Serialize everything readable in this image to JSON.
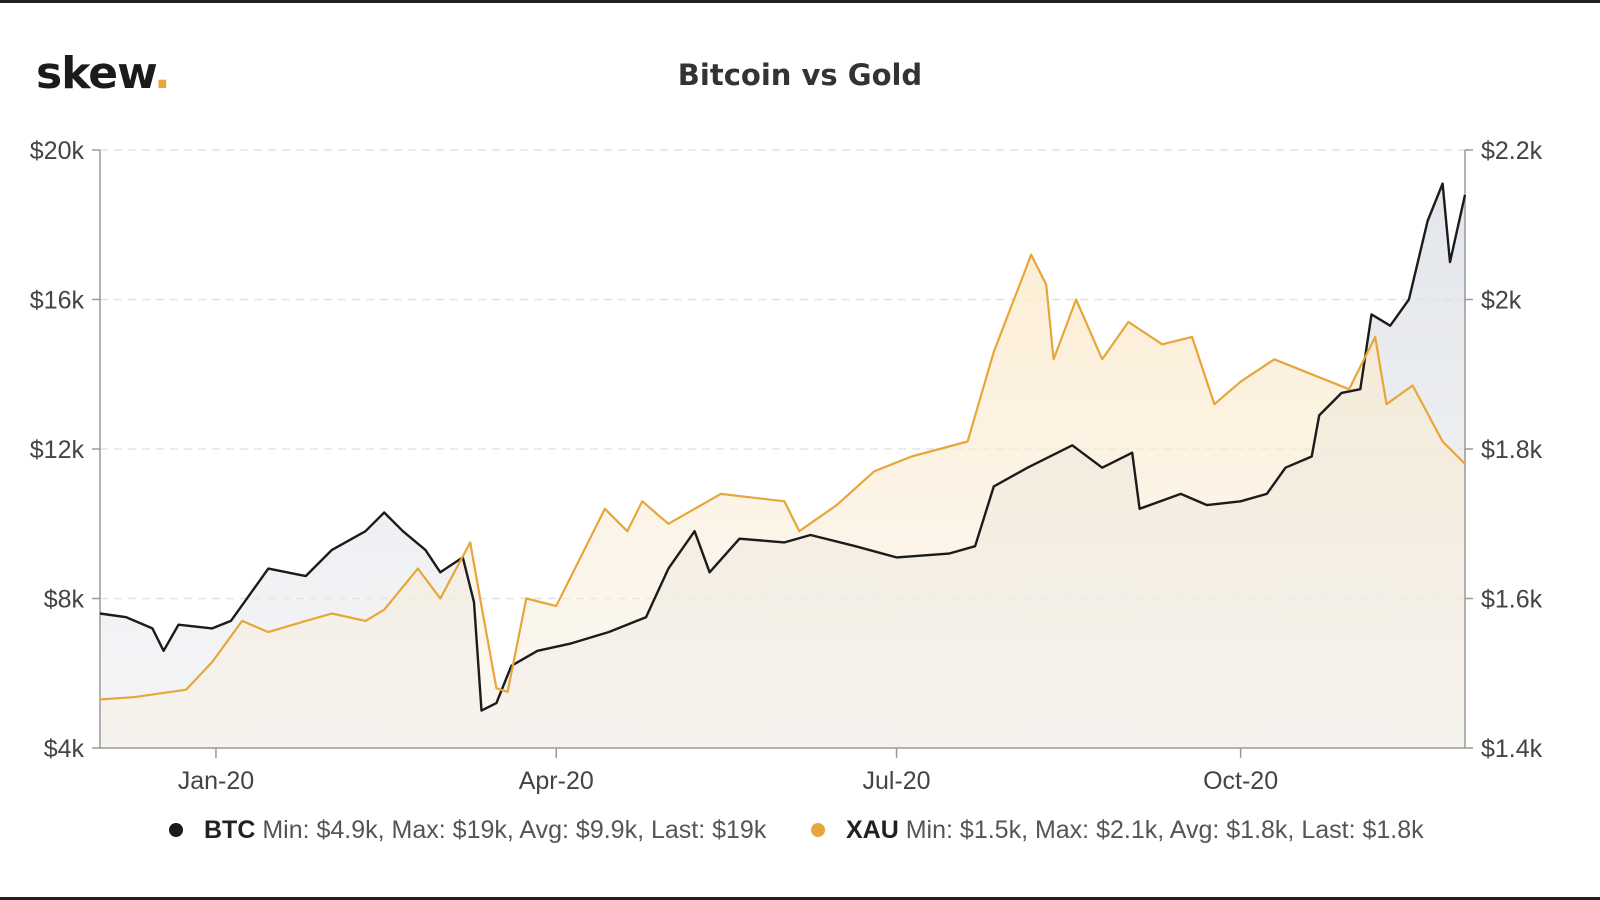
{
  "brand": {
    "name": "skew",
    "dot": "."
  },
  "chart_data": {
    "type": "area",
    "title": "Bitcoin vs Gold",
    "x_ticks": [
      "Jan-20",
      "Apr-20",
      "Jul-20",
      "Oct-20"
    ],
    "x_range": [
      "2019-12-01",
      "2020-11-30"
    ],
    "y_left": {
      "ticks": [
        "$4k",
        "$8k",
        "$12k",
        "$16k",
        "$20k"
      ],
      "range": [
        4000,
        20000
      ]
    },
    "y_right": {
      "ticks": [
        "$1.4k",
        "$1.6k",
        "$1.8k",
        "$2k",
        "$2.2k"
      ],
      "range": [
        1400,
        2200
      ]
    },
    "grid": true,
    "legend_position": "bottom",
    "series": [
      {
        "name": "BTC",
        "axis": "left",
        "color": "#1b1b1b",
        "stats": "Min: $4.9k, Max: $19k, Avg: $9.9k, Last: $19k",
        "points": [
          [
            "2019-12-01",
            7600
          ],
          [
            "2019-12-08",
            7500
          ],
          [
            "2019-12-15",
            7200
          ],
          [
            "2019-12-18",
            6600
          ],
          [
            "2019-12-22",
            7300
          ],
          [
            "2019-12-31",
            7200
          ],
          [
            "2020-01-05",
            7400
          ],
          [
            "2020-01-10",
            8100
          ],
          [
            "2020-01-15",
            8800
          ],
          [
            "2020-01-25",
            8600
          ],
          [
            "2020-02-01",
            9300
          ],
          [
            "2020-02-10",
            9800
          ],
          [
            "2020-02-15",
            10300
          ],
          [
            "2020-02-20",
            9800
          ],
          [
            "2020-02-26",
            9300
          ],
          [
            "2020-03-01",
            8700
          ],
          [
            "2020-03-07",
            9100
          ],
          [
            "2020-03-10",
            7900
          ],
          [
            "2020-03-12",
            5000
          ],
          [
            "2020-03-16",
            5200
          ],
          [
            "2020-03-20",
            6200
          ],
          [
            "2020-03-27",
            6600
          ],
          [
            "2020-04-05",
            6800
          ],
          [
            "2020-04-15",
            7100
          ],
          [
            "2020-04-25",
            7500
          ],
          [
            "2020-05-01",
            8800
          ],
          [
            "2020-05-08",
            9800
          ],
          [
            "2020-05-12",
            8700
          ],
          [
            "2020-05-20",
            9600
          ],
          [
            "2020-06-01",
            9500
          ],
          [
            "2020-06-08",
            9700
          ],
          [
            "2020-06-20",
            9400
          ],
          [
            "2020-07-01",
            9100
          ],
          [
            "2020-07-15",
            9200
          ],
          [
            "2020-07-22",
            9400
          ],
          [
            "2020-07-27",
            11000
          ],
          [
            "2020-08-05",
            11500
          ],
          [
            "2020-08-17",
            12100
          ],
          [
            "2020-08-25",
            11500
          ],
          [
            "2020-09-02",
            11900
          ],
          [
            "2020-09-04",
            10400
          ],
          [
            "2020-09-15",
            10800
          ],
          [
            "2020-09-22",
            10500
          ],
          [
            "2020-10-01",
            10600
          ],
          [
            "2020-10-08",
            10800
          ],
          [
            "2020-10-13",
            11500
          ],
          [
            "2020-10-20",
            11800
          ],
          [
            "2020-10-22",
            12900
          ],
          [
            "2020-10-28",
            13500
          ],
          [
            "2020-11-02",
            13600
          ],
          [
            "2020-11-05",
            15600
          ],
          [
            "2020-11-10",
            15300
          ],
          [
            "2020-11-15",
            16000
          ],
          [
            "2020-11-20",
            18100
          ],
          [
            "2020-11-24",
            19100
          ],
          [
            "2020-11-26",
            17000
          ],
          [
            "2020-11-30",
            18800
          ]
        ]
      },
      {
        "name": "XAU",
        "axis": "right",
        "color": "#e8a63a",
        "stats": "Min: $1.5k, Max: $2.1k, Avg: $1.8k, Last: $1.8k",
        "points": [
          [
            "2019-12-01",
            1465
          ],
          [
            "2019-12-10",
            1468
          ],
          [
            "2019-12-24",
            1478
          ],
          [
            "2019-12-31",
            1515
          ],
          [
            "2020-01-08",
            1570
          ],
          [
            "2020-01-15",
            1555
          ],
          [
            "2020-01-25",
            1570
          ],
          [
            "2020-02-01",
            1580
          ],
          [
            "2020-02-10",
            1570
          ],
          [
            "2020-02-15",
            1585
          ],
          [
            "2020-02-24",
            1640
          ],
          [
            "2020-03-01",
            1600
          ],
          [
            "2020-03-09",
            1675
          ],
          [
            "2020-03-12",
            1590
          ],
          [
            "2020-03-16",
            1480
          ],
          [
            "2020-03-19",
            1475
          ],
          [
            "2020-03-24",
            1600
          ],
          [
            "2020-04-01",
            1590
          ],
          [
            "2020-04-07",
            1650
          ],
          [
            "2020-04-14",
            1720
          ],
          [
            "2020-04-20",
            1690
          ],
          [
            "2020-04-24",
            1730
          ],
          [
            "2020-05-01",
            1700
          ],
          [
            "2020-05-15",
            1740
          ],
          [
            "2020-06-01",
            1730
          ],
          [
            "2020-06-05",
            1690
          ],
          [
            "2020-06-15",
            1725
          ],
          [
            "2020-06-25",
            1770
          ],
          [
            "2020-07-05",
            1790
          ],
          [
            "2020-07-20",
            1810
          ],
          [
            "2020-07-27",
            1930
          ],
          [
            "2020-08-06",
            2060
          ],
          [
            "2020-08-10",
            2020
          ],
          [
            "2020-08-12",
            1920
          ],
          [
            "2020-08-18",
            2000
          ],
          [
            "2020-08-25",
            1920
          ],
          [
            "2020-09-01",
            1970
          ],
          [
            "2020-09-10",
            1940
          ],
          [
            "2020-09-18",
            1950
          ],
          [
            "2020-09-24",
            1860
          ],
          [
            "2020-10-01",
            1890
          ],
          [
            "2020-10-10",
            1920
          ],
          [
            "2020-10-20",
            1900
          ],
          [
            "2020-10-30",
            1880
          ],
          [
            "2020-11-06",
            1950
          ],
          [
            "2020-11-09",
            1860
          ],
          [
            "2020-11-16",
            1885
          ],
          [
            "2020-11-24",
            1810
          ],
          [
            "2020-11-30",
            1780
          ]
        ]
      }
    ]
  }
}
